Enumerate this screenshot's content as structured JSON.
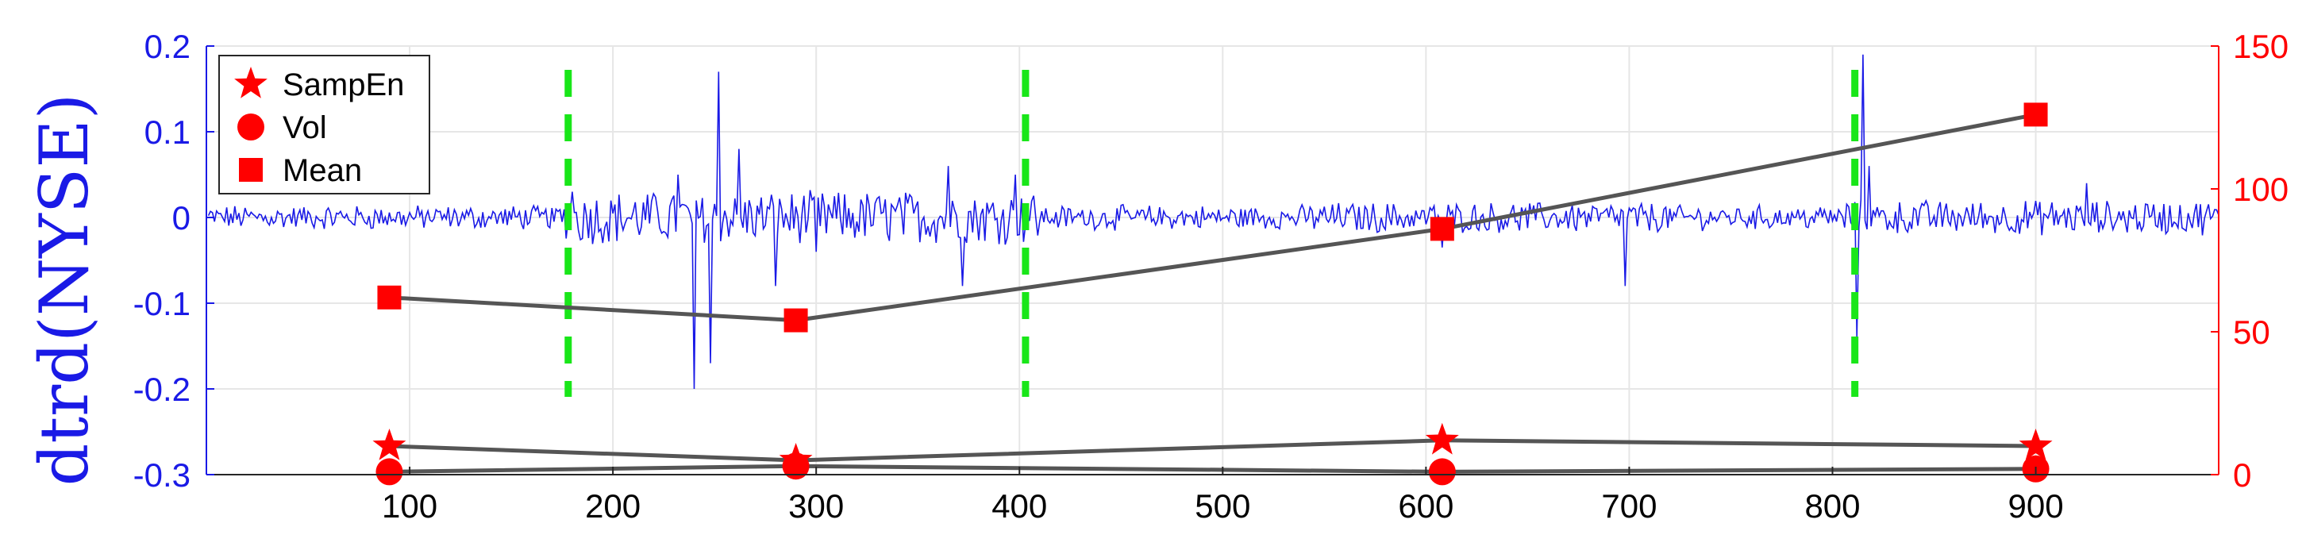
{
  "chart_data": {
    "type": "line",
    "title": "",
    "xlabel": "",
    "ylabel": "dtrd(NYSE)",
    "xlim": [
      0,
      990
    ],
    "ylim_left": [
      -0.3,
      0.2
    ],
    "ylim_right": [
      0,
      150
    ],
    "xticks": [
      "100",
      "200",
      "300",
      "400",
      "500",
      "600",
      "700",
      "800",
      "900"
    ],
    "yticks_left": [
      "0.2",
      "0.1",
      "0",
      "-0.1",
      "-0.2",
      "-0.3"
    ],
    "yticks_right": [
      "150",
      "100",
      "50",
      "0"
    ],
    "grid": true,
    "legend": {
      "placement": "top-left",
      "entries": [
        {
          "label": "SampEn",
          "marker": "star"
        },
        {
          "label": "Vol",
          "marker": "circle"
        },
        {
          "label": "Mean",
          "marker": "square"
        }
      ]
    },
    "vertical_lines": {
      "style": "dashed",
      "color": "#19e619",
      "x": [
        178,
        403,
        811
      ]
    },
    "signal": {
      "name": "dtrd(NYSE)",
      "axis": "left",
      "color": "#1a1ae6",
      "n_points": 990,
      "base_amplitude": 0.012,
      "spikes": [
        {
          "x": 180,
          "y": 0.03
        },
        {
          "x": 232,
          "y": 0.05
        },
        {
          "x": 240,
          "y": -0.2
        },
        {
          "x": 248,
          "y": -0.17
        },
        {
          "x": 252,
          "y": 0.17
        },
        {
          "x": 262,
          "y": 0.08
        },
        {
          "x": 280,
          "y": -0.08
        },
        {
          "x": 300,
          "y": -0.04
        },
        {
          "x": 365,
          "y": 0.06
        },
        {
          "x": 372,
          "y": -0.08
        },
        {
          "x": 398,
          "y": 0.05
        },
        {
          "x": 608,
          "y": -0.035
        },
        {
          "x": 698,
          "y": -0.08
        },
        {
          "x": 812,
          "y": -0.14
        },
        {
          "x": 815,
          "y": 0.19
        },
        {
          "x": 818,
          "y": 0.06
        },
        {
          "x": 925,
          "y": 0.04
        }
      ]
    },
    "series": [
      {
        "name": "Mean",
        "axis": "right",
        "marker": "square",
        "x": [
          90,
          290,
          608,
          900
        ],
        "y": [
          62,
          54,
          86,
          126
        ]
      },
      {
        "name": "SampEn",
        "axis": "right",
        "marker": "star",
        "x": [
          90,
          290,
          608,
          900
        ],
        "y": [
          10,
          5,
          12,
          10
        ]
      },
      {
        "name": "Vol",
        "axis": "right",
        "marker": "circle",
        "x": [
          90,
          290,
          608,
          900
        ],
        "y": [
          1,
          3,
          1,
          2
        ]
      }
    ],
    "colors": {
      "left_axis": "#1a1ae6",
      "right_axis": "#ff0000",
      "markers": "#ff0000",
      "connector": "#555555"
    }
  }
}
